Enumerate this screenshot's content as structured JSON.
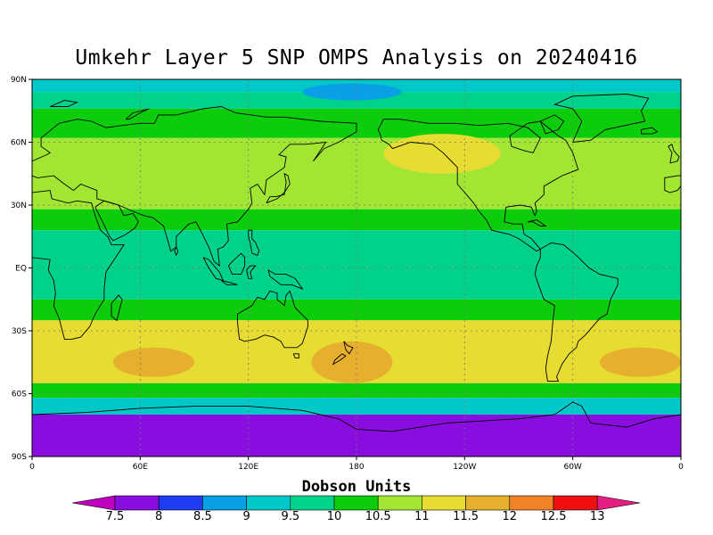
{
  "title": "Umkehr Layer 5 SNP OMPS Analysis on 20240416",
  "lat_labels": [
    "90N",
    "60N",
    "30N",
    "EQ",
    "30S",
    "60S",
    "90S"
  ],
  "lon_labels": [
    "0",
    "60E",
    "120E",
    "180",
    "120W",
    "60W",
    "0"
  ],
  "colorbar": {
    "label": "Dobson Units",
    "levels": [
      "7.5",
      "8",
      "8.5",
      "9",
      "9.5",
      "10",
      "10.5",
      "11",
      "11.5",
      "12",
      "12.5",
      "13"
    ],
    "colors": [
      "#c000c0",
      "#8a0ddf",
      "#1f3cf0",
      "#0aa0e6",
      "#00c8c8",
      "#00d28c",
      "#0ccc0c",
      "#a0e632",
      "#e6dc32",
      "#e6af2d",
      "#f08228",
      "#f01010",
      "#e61e82"
    ]
  },
  "chart_data": {
    "type": "heatmap",
    "title": "Umkehr Layer 5 SNP OMPS Analysis on 20240416",
    "xlabel": "",
    "ylabel": "",
    "xlim": [
      0,
      360
    ],
    "ylim": [
      -90,
      90
    ],
    "units": "Dobson Units",
    "contour_levels": [
      7.5,
      8,
      8.5,
      9,
      9.5,
      10,
      10.5,
      11,
      11.5,
      12,
      12.5,
      13
    ],
    "zonal_profile": [
      {
        "lat_range": [
          84,
          90
        ],
        "value_range": [
          9,
          9.5
        ]
      },
      {
        "lat_range": [
          76,
          84
        ],
        "value_range": [
          9.5,
          10
        ]
      },
      {
        "lat_range": [
          62,
          76
        ],
        "value_range": [
          10,
          10.5
        ]
      },
      {
        "lat_range": [
          28,
          62
        ],
        "value_range": [
          10.5,
          11
        ]
      },
      {
        "lat_range": [
          18,
          28
        ],
        "value_range": [
          10,
          10.5
        ]
      },
      {
        "lat_range": [
          -15,
          18
        ],
        "value_range": [
          9.5,
          10
        ]
      },
      {
        "lat_range": [
          -25,
          -15
        ],
        "value_range": [
          10,
          10.5
        ]
      },
      {
        "lat_range": [
          -55,
          -25
        ],
        "value_range": [
          10.5,
          11.5
        ]
      },
      {
        "lat_range": [
          -62,
          -55
        ],
        "value_range": [
          10,
          10.5
        ]
      },
      {
        "lat_range": [
          -70,
          -62
        ],
        "value_range": [
          8.5,
          9.5
        ]
      },
      {
        "lat_range": [
          -90,
          -70
        ],
        "value_range": [
          7.5,
          8
        ]
      }
    ],
    "features": [
      {
        "name": "arctic low",
        "lon_range": [
          150,
          205
        ],
        "lat_range": [
          80,
          88
        ],
        "value_range": [
          8.5,
          9
        ]
      },
      {
        "name": "N Pacific / Canada max",
        "lon_range": [
          195,
          260
        ],
        "lat_range": [
          45,
          64
        ],
        "value_range": [
          11,
          11.5
        ]
      },
      {
        "name": "S Indian Ocean max",
        "lon_range": [
          45,
          90
        ],
        "lat_range": [
          -52,
          -38
        ],
        "value_range": [
          11.5,
          12
        ]
      },
      {
        "name": "New Zealand max",
        "lon_range": [
          155,
          200
        ],
        "lat_range": [
          -55,
          -35
        ],
        "value_range": [
          11.5,
          12
        ]
      },
      {
        "name": "S Atlantic max",
        "lon_range": [
          315,
          360
        ],
        "lat_range": [
          -52,
          -38
        ],
        "value_range": [
          11.5,
          12
        ]
      }
    ]
  }
}
